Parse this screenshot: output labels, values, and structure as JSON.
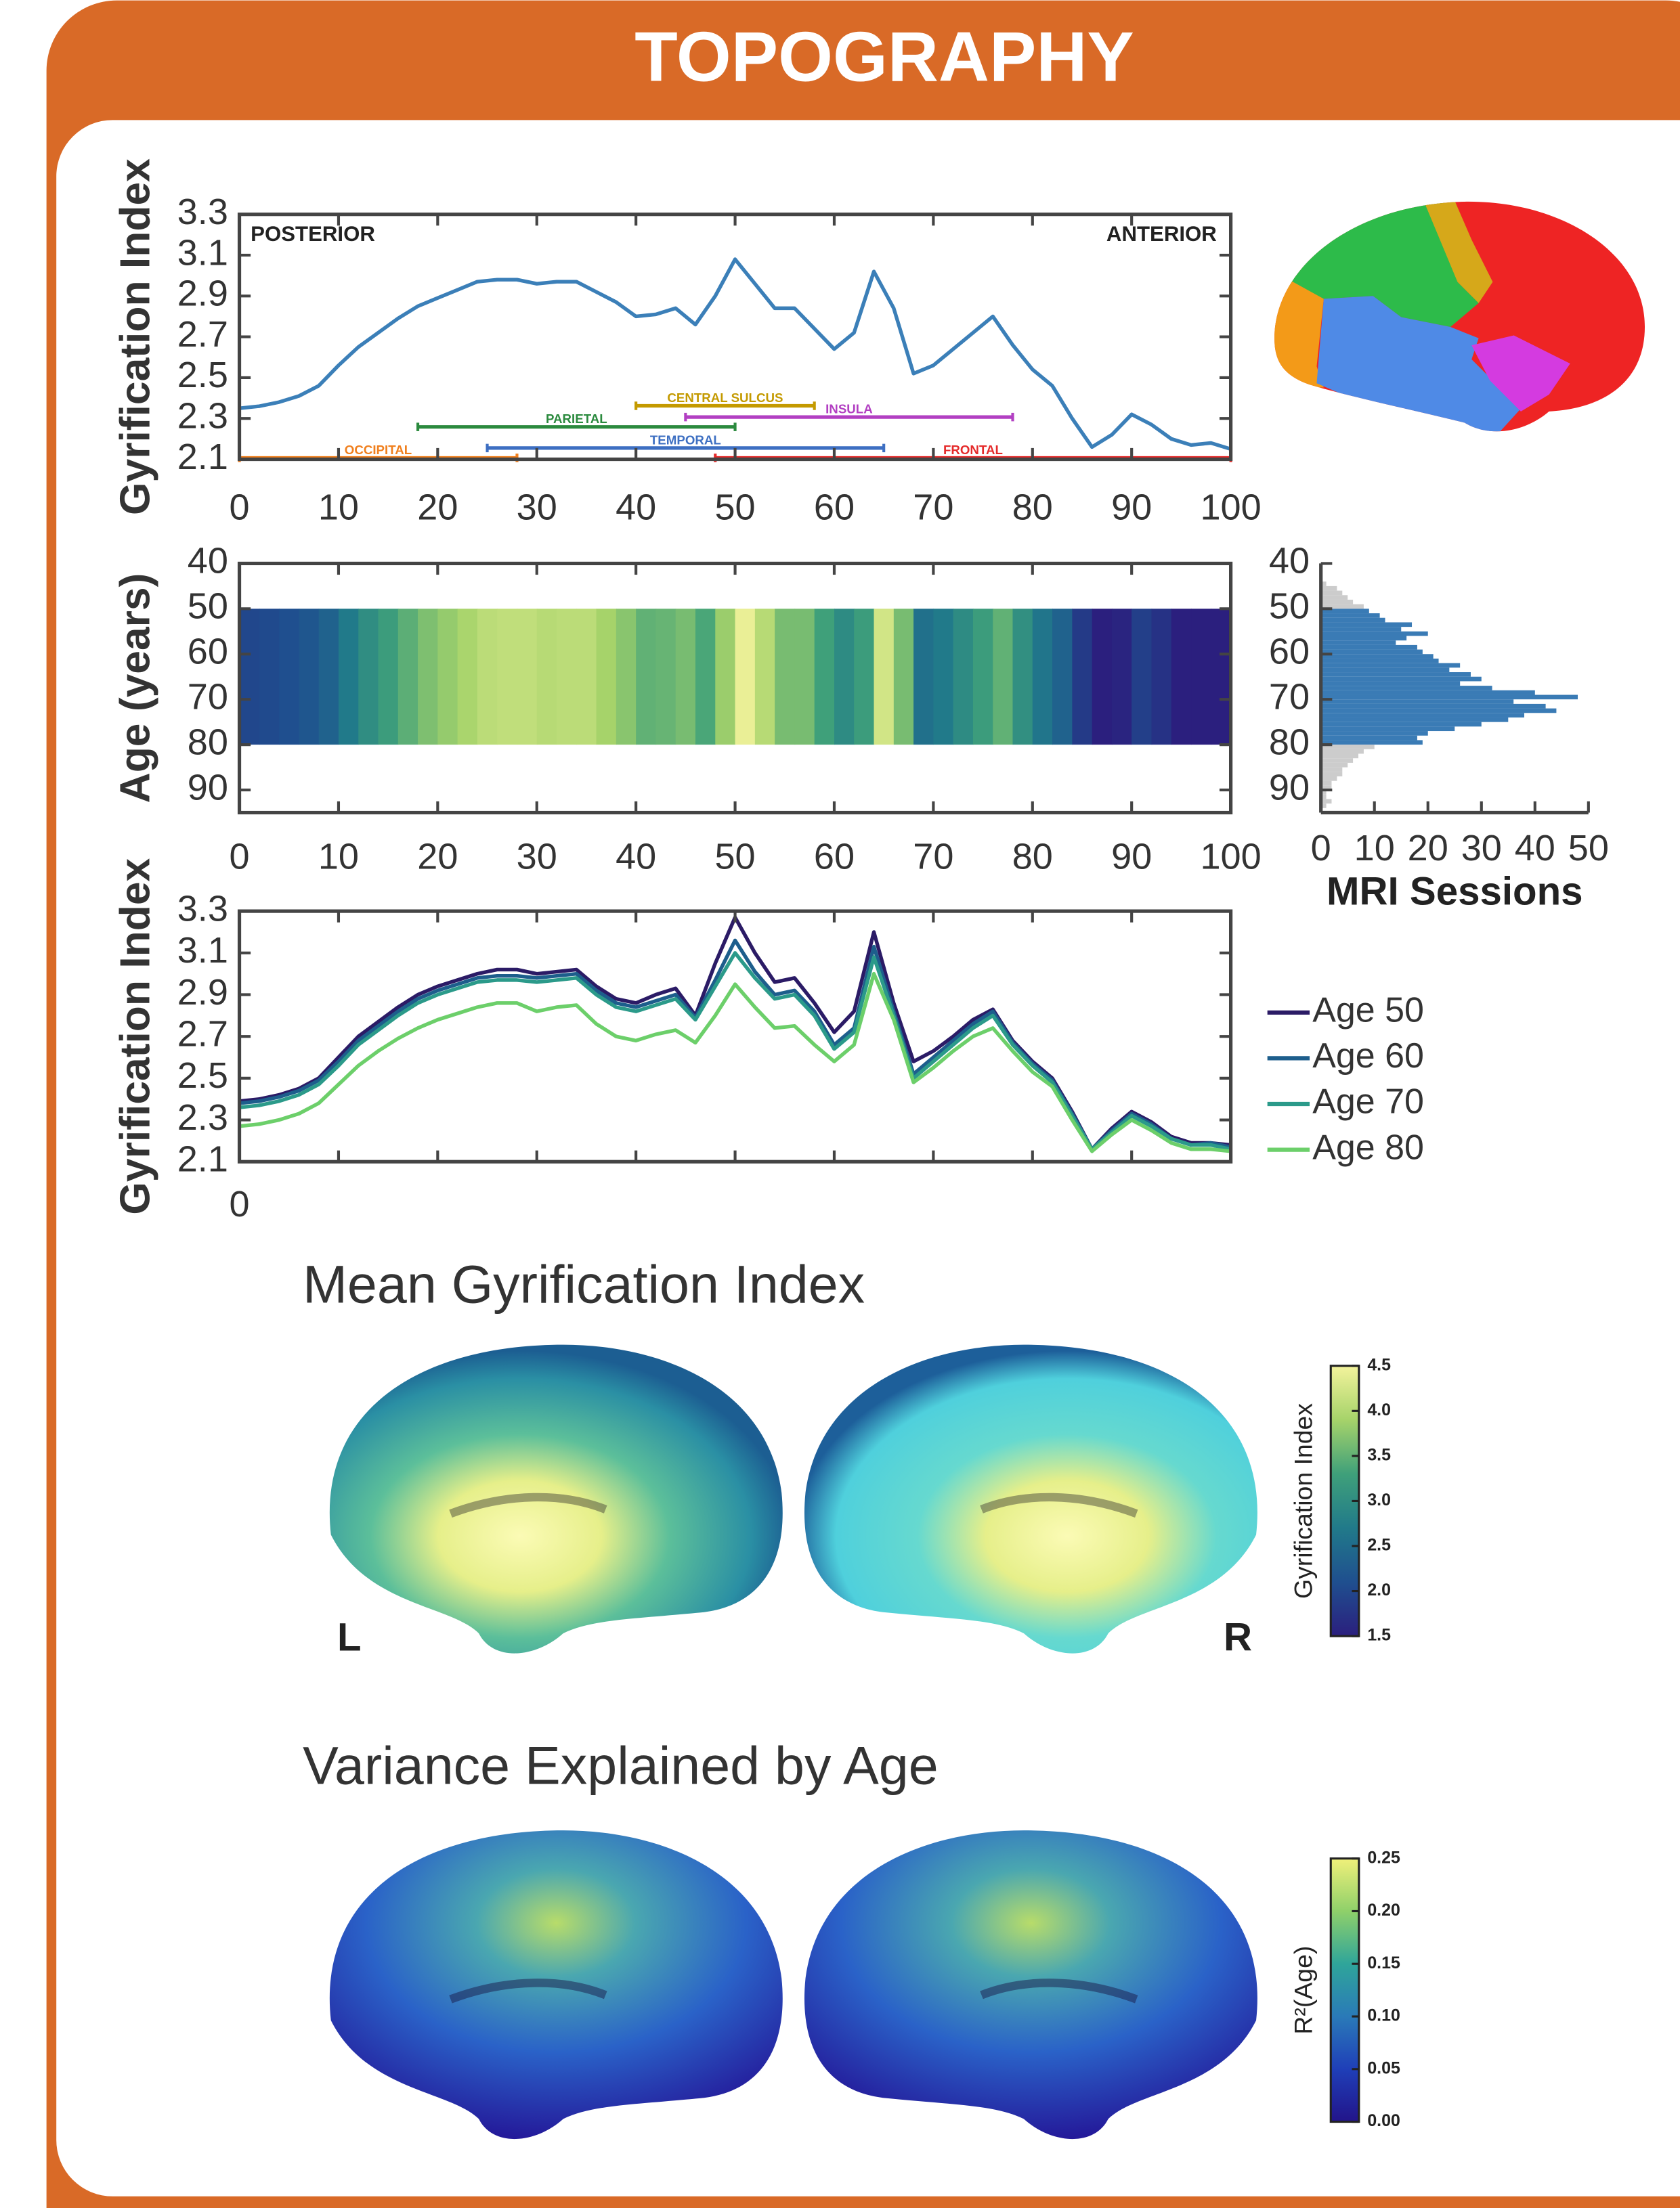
{
  "header": {
    "title": "TOPOGRAPHY"
  },
  "chart_data": [
    {
      "type": "line",
      "ylabel": "Gyrification Index",
      "annotations": [
        "POSTERIOR",
        "ANTERIOR"
      ],
      "x": [
        0,
        2,
        4,
        6,
        8,
        10,
        12,
        14,
        16,
        18,
        20,
        22,
        24,
        26,
        28,
        30,
        32,
        34,
        36,
        38,
        40,
        42,
        44,
        46,
        48,
        50,
        52,
        54,
        56,
        58,
        60,
        62,
        64,
        66,
        68,
        70,
        72,
        74,
        76,
        78,
        80,
        82,
        84,
        86,
        88,
        90,
        92,
        94,
        96,
        98,
        100
      ],
      "values": [
        2.35,
        2.36,
        2.38,
        2.41,
        2.46,
        2.56,
        2.65,
        2.72,
        2.79,
        2.85,
        2.89,
        2.93,
        2.97,
        2.98,
        2.98,
        2.96,
        2.97,
        2.97,
        2.92,
        2.87,
        2.8,
        2.81,
        2.84,
        2.76,
        2.9,
        3.08,
        2.96,
        2.84,
        2.84,
        2.74,
        2.64,
        2.72,
        3.02,
        2.84,
        2.52,
        2.56,
        2.64,
        2.72,
        2.8,
        2.66,
        2.54,
        2.46,
        2.3,
        2.16,
        2.22,
        2.32,
        2.27,
        2.2,
        2.17,
        2.18,
        2.15
      ],
      "color": "#3b7fb8",
      "regions": [
        {
          "label": "OCCIPITAL",
          "start": 0,
          "end": 28,
          "color": "#f07f1d"
        },
        {
          "label": "PARIETAL",
          "start": 18,
          "end": 50,
          "color": "#2b8a3e"
        },
        {
          "label": "CENTRAL SULCUS",
          "start": 40,
          "end": 58,
          "color": "#c49a00"
        },
        {
          "label": "INSULA",
          "start": 45,
          "end": 78,
          "color": "#b23fc2"
        },
        {
          "label": "TEMPORAL",
          "start": 25,
          "end": 65,
          "color": "#3d6fc2"
        },
        {
          "label": "FRONTAL",
          "start": 48,
          "end": 100,
          "color": "#e52a2a"
        }
      ],
      "xlim": [
        0,
        100
      ],
      "xticks": [
        0,
        10,
        20,
        30,
        40,
        50,
        60,
        70,
        80,
        90,
        100
      ],
      "ylim": [
        2.1,
        3.3
      ],
      "yticks": [
        2.1,
        2.3,
        2.5,
        2.7,
        2.9,
        3.1,
        3.3
      ]
    },
    {
      "type": "heatmap",
      "ylabel": "Age (years)",
      "xbins": [
        0,
        2,
        4,
        6,
        8,
        10,
        12,
        14,
        16,
        18,
        20,
        22,
        24,
        26,
        28,
        30,
        32,
        34,
        36,
        38,
        40,
        42,
        44,
        46,
        48,
        50,
        52,
        54,
        56,
        58,
        60,
        62,
        64,
        66,
        68,
        70,
        72,
        74,
        76,
        78,
        80,
        82,
        84,
        86,
        88,
        90,
        92,
        94,
        96,
        98,
        100
      ],
      "ybins": [
        50,
        80
      ],
      "values": [
        [
          2.35,
          2.36,
          2.38,
          2.41,
          2.46,
          2.56,
          2.65,
          2.72,
          2.79,
          2.85,
          2.89,
          2.93,
          2.97,
          2.98,
          2.98,
          2.96,
          2.97,
          2.97,
          2.92,
          2.87,
          2.8,
          2.81,
          2.84,
          2.76,
          2.9,
          3.08,
          2.96,
          2.84,
          2.84,
          2.74,
          2.64,
          2.72,
          3.02,
          2.84,
          2.52,
          2.56,
          2.64,
          2.72,
          2.8,
          2.66,
          2.54,
          2.46,
          2.3,
          2.16,
          2.22,
          2.32,
          2.27,
          2.2,
          2.17,
          2.18
        ]
      ],
      "colors": [
        "#2b1f7e",
        "#1f4f8f",
        "#217a8a",
        "#3fa07a",
        "#a6d36a",
        "#f3f39c"
      ],
      "clim": [
        2.2,
        3.1
      ],
      "xlim": [
        0,
        100
      ],
      "xticks": [
        0,
        10,
        20,
        30,
        40,
        50,
        60,
        70,
        80,
        90,
        100
      ],
      "ylim": [
        40,
        95
      ],
      "yreverse": true,
      "yticks": [
        40,
        50,
        60,
        70,
        80,
        90
      ]
    },
    {
      "type": "histogram",
      "orientation": "horizontal",
      "xlabel": "MRI Sessions",
      "bins": [
        44,
        45,
        46,
        47,
        48,
        49,
        50,
        51,
        52,
        53,
        54,
        55,
        56,
        57,
        58,
        59,
        60,
        61,
        62,
        63,
        64,
        65,
        66,
        67,
        68,
        69,
        70,
        71,
        72,
        73,
        74,
        75,
        76,
        77,
        78,
        79,
        80,
        81,
        82,
        83,
        84,
        85,
        86,
        87,
        88,
        89,
        90,
        91,
        92,
        93,
        94
      ],
      "values": [
        1,
        3,
        4,
        5,
        6,
        8,
        9,
        11,
        12,
        17,
        15,
        20,
        16,
        14,
        18,
        19,
        21,
        22,
        26,
        24,
        28,
        30,
        26,
        32,
        40,
        48,
        36,
        42,
        44,
        38,
        35,
        30,
        25,
        20,
        18,
        19,
        10,
        8,
        7,
        6,
        5,
        4,
        4,
        3,
        2,
        2,
        1,
        1,
        2,
        1
      ],
      "color": "#3a7bb5",
      "muted_color": "#cccccc",
      "highlight": [
        50,
        80
      ],
      "xlim": [
        0,
        50
      ],
      "xticks": [
        0,
        10,
        20,
        30,
        40,
        50
      ],
      "ylim": [
        40,
        95
      ],
      "yreverse": true,
      "yticks": [
        40,
        50,
        60,
        70,
        80,
        90
      ]
    },
    {
      "type": "line",
      "ylabel": "Gyrification Index",
      "legend": "right",
      "x": [
        0,
        2,
        4,
        6,
        8,
        10,
        12,
        14,
        16,
        18,
        20,
        22,
        24,
        26,
        28,
        30,
        32,
        34,
        36,
        38,
        40,
        42,
        44,
        46,
        48,
        50,
        52,
        54,
        56,
        58,
        60,
        62,
        64,
        66,
        68,
        70,
        72,
        74,
        76,
        78,
        80,
        82,
        84,
        86,
        88,
        90,
        92,
        94,
        96,
        98,
        100
      ],
      "series": [
        {
          "name": "Age 50",
          "color": "#2b1b66",
          "values": [
            2.39,
            2.4,
            2.42,
            2.45,
            2.5,
            2.6,
            2.7,
            2.77,
            2.84,
            2.9,
            2.94,
            2.97,
            3.0,
            3.02,
            3.02,
            3.0,
            3.01,
            3.02,
            2.94,
            2.88,
            2.86,
            2.9,
            2.93,
            2.8,
            3.05,
            3.27,
            3.1,
            2.96,
            2.98,
            2.86,
            2.72,
            2.82,
            3.2,
            2.86,
            2.58,
            2.63,
            2.7,
            2.78,
            2.83,
            2.68,
            2.58,
            2.5,
            2.34,
            2.16,
            2.26,
            2.34,
            2.29,
            2.22,
            2.19,
            2.19,
            2.18
          ]
        },
        {
          "name": "Age 60",
          "color": "#1d5e8c",
          "values": [
            2.38,
            2.39,
            2.41,
            2.44,
            2.49,
            2.58,
            2.68,
            2.75,
            2.82,
            2.88,
            2.92,
            2.95,
            2.98,
            2.99,
            2.99,
            2.98,
            2.99,
            3.0,
            2.92,
            2.86,
            2.84,
            2.87,
            2.9,
            2.79,
            2.97,
            3.16,
            3.01,
            2.9,
            2.92,
            2.82,
            2.66,
            2.74,
            3.13,
            2.82,
            2.52,
            2.6,
            2.68,
            2.76,
            2.82,
            2.67,
            2.57,
            2.49,
            2.33,
            2.16,
            2.25,
            2.33,
            2.28,
            2.21,
            2.18,
            2.19,
            2.17
          ]
        },
        {
          "name": "Age 70",
          "color": "#2b9a8a",
          "values": [
            2.36,
            2.37,
            2.39,
            2.42,
            2.47,
            2.56,
            2.66,
            2.73,
            2.8,
            2.86,
            2.9,
            2.93,
            2.96,
            2.97,
            2.97,
            2.96,
            2.97,
            2.98,
            2.9,
            2.84,
            2.82,
            2.85,
            2.88,
            2.78,
            2.94,
            3.1,
            2.98,
            2.88,
            2.9,
            2.8,
            2.64,
            2.72,
            3.08,
            2.8,
            2.5,
            2.58,
            2.66,
            2.74,
            2.8,
            2.66,
            2.56,
            2.48,
            2.32,
            2.16,
            2.24,
            2.32,
            2.27,
            2.21,
            2.18,
            2.18,
            2.16
          ]
        },
        {
          "name": "Age 80",
          "color": "#6ccf6a",
          "values": [
            2.27,
            2.28,
            2.3,
            2.33,
            2.38,
            2.47,
            2.56,
            2.63,
            2.69,
            2.74,
            2.78,
            2.81,
            2.84,
            2.86,
            2.86,
            2.82,
            2.84,
            2.85,
            2.76,
            2.7,
            2.68,
            2.71,
            2.73,
            2.67,
            2.8,
            2.95,
            2.84,
            2.74,
            2.75,
            2.66,
            2.58,
            2.66,
            3.0,
            2.78,
            2.48,
            2.55,
            2.63,
            2.7,
            2.74,
            2.63,
            2.53,
            2.46,
            2.3,
            2.15,
            2.23,
            2.3,
            2.25,
            2.19,
            2.16,
            2.16,
            2.15
          ]
        }
      ],
      "xlim": [
        0,
        100
      ],
      "xticks": [
        0
      ],
      "xtick_marks": [
        0,
        10,
        20,
        30,
        40,
        50,
        60,
        70,
        80,
        90,
        100
      ],
      "ylim": [
        2.1,
        3.3
      ],
      "yticks": [
        2.1,
        2.3,
        2.5,
        2.7,
        2.9,
        3.1,
        3.3
      ]
    }
  ],
  "sections": [
    {
      "title": "Mean Gyrification Index",
      "left": "L",
      "right": "R",
      "colorbar": {
        "label": "Gyrification Index",
        "lim": [
          1.5,
          4.5
        ],
        "ticks": [
          1.5,
          {
            "value": 2,
            "label": "2.0"
          },
          2.5,
          {
            "value": 3,
            "label": "3.0"
          },
          3.5,
          {
            "value": 4,
            "label": "4.0"
          },
          4.5
        ],
        "colors": [
          "#2b1f7e",
          "#1f4f8f",
          "#217a8a",
          "#3fa07a",
          "#a6d36a",
          "#f3f39c"
        ]
      }
    },
    {
      "title": "Variance Explained by Age",
      "colorbar": {
        "label": "R²(Age)",
        "lim": [
          0,
          0.25
        ],
        "ticks": [
          {
            "value": 0,
            "label": "0.00"
          },
          0.05,
          {
            "value": 0.1,
            "label": "0.10"
          },
          0.15,
          {
            "value": 0.2,
            "label": "0.20"
          },
          0.25
        ],
        "colors": [
          "#22148a",
          "#1f3fb8",
          "#2a7ab8",
          "#2fa59a",
          "#8fd06a",
          "#f0f07a"
        ]
      }
    }
  ]
}
